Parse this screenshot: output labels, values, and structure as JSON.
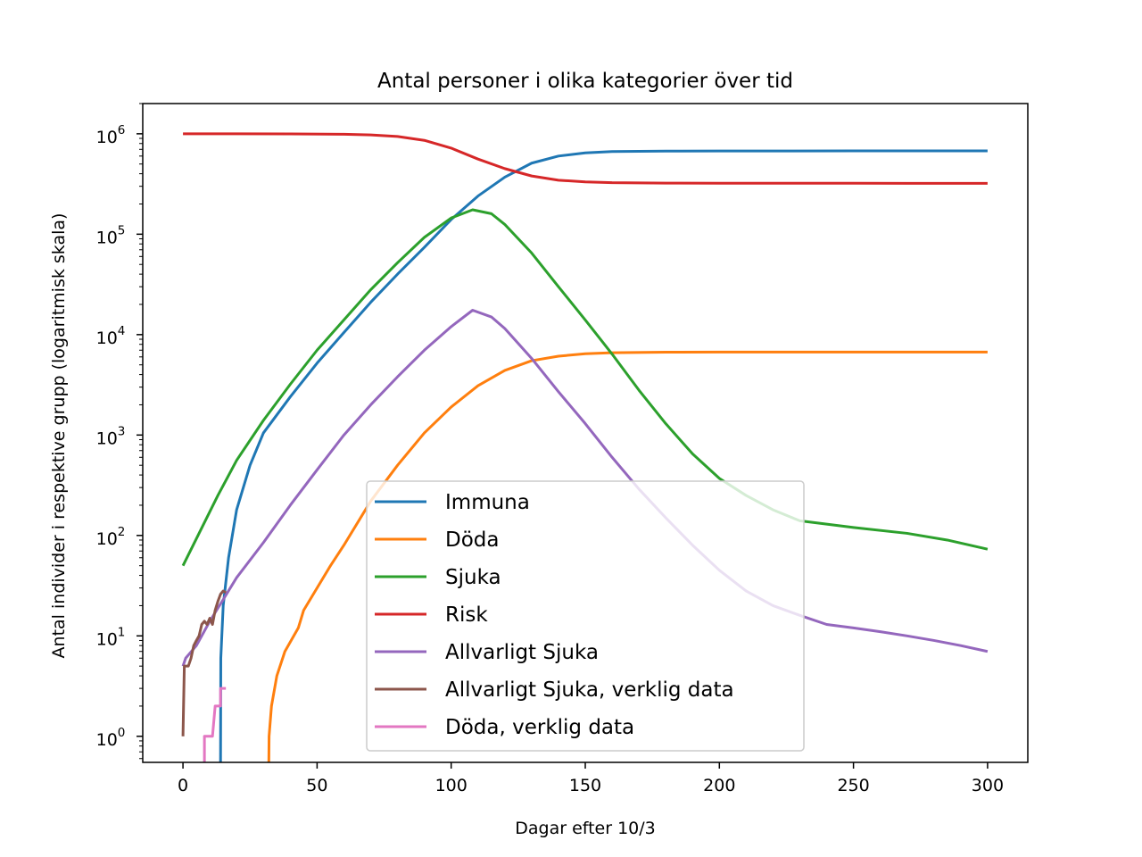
{
  "chart_data": {
    "type": "line",
    "title": "Antal personer i olika kategorier över tid",
    "xlabel": "Dagar efter 10/3",
    "ylabel": "Antal individer i respektive grupp (logaritmisk skala)",
    "xlim": [
      -15,
      315
    ],
    "ylim": [
      0.55,
      2000000
    ],
    "yscale": "log",
    "grid": false,
    "legend_position": "lower center",
    "x_ticks": [
      0,
      50,
      100,
      150,
      200,
      250,
      300
    ],
    "y_ticks": [
      {
        "value": 1,
        "base": "10",
        "exp": "0"
      },
      {
        "value": 10,
        "base": "10",
        "exp": "1"
      },
      {
        "value": 100,
        "base": "10",
        "exp": "2"
      },
      {
        "value": 1000,
        "base": "10",
        "exp": "3"
      },
      {
        "value": 10000,
        "base": "10",
        "exp": "4"
      },
      {
        "value": 100000,
        "base": "10",
        "exp": "5"
      },
      {
        "value": 1000000,
        "base": "10",
        "exp": "6"
      }
    ],
    "series": [
      {
        "name": "Immuna",
        "color": "#1f77b4",
        "points": [
          [
            14,
            0.5
          ],
          [
            14.1,
            6
          ],
          [
            15,
            20
          ],
          [
            17,
            60
          ],
          [
            20,
            180
          ],
          [
            25,
            500
          ],
          [
            30,
            1050
          ],
          [
            40,
            2400
          ],
          [
            50,
            5200
          ],
          [
            60,
            10500
          ],
          [
            70,
            21000
          ],
          [
            80,
            40000
          ],
          [
            90,
            74000
          ],
          [
            100,
            140000
          ],
          [
            110,
            240000
          ],
          [
            120,
            370000
          ],
          [
            130,
            510000
          ],
          [
            140,
            600000
          ],
          [
            150,
            645000
          ],
          [
            160,
            665000
          ],
          [
            180,
            672000
          ],
          [
            200,
            674000
          ],
          [
            250,
            675000
          ],
          [
            300,
            675000
          ]
        ]
      },
      {
        "name": "Döda",
        "color": "#ff7f0e",
        "points": [
          [
            32,
            0.5
          ],
          [
            32.1,
            1
          ],
          [
            33,
            2
          ],
          [
            35,
            4
          ],
          [
            38,
            7
          ],
          [
            43,
            12
          ],
          [
            45,
            18
          ],
          [
            50,
            30
          ],
          [
            55,
            50
          ],
          [
            60,
            80
          ],
          [
            70,
            220
          ],
          [
            80,
            500
          ],
          [
            90,
            1050
          ],
          [
            100,
            1900
          ],
          [
            110,
            3100
          ],
          [
            120,
            4400
          ],
          [
            130,
            5500
          ],
          [
            140,
            6100
          ],
          [
            150,
            6450
          ],
          [
            160,
            6600
          ],
          [
            180,
            6680
          ],
          [
            200,
            6700
          ],
          [
            300,
            6700
          ]
        ]
      },
      {
        "name": "Sjuka",
        "color": "#2ca02c",
        "points": [
          [
            0,
            50
          ],
          [
            13,
            250
          ],
          [
            20,
            560
          ],
          [
            30,
            1400
          ],
          [
            40,
            3200
          ],
          [
            50,
            7000
          ],
          [
            60,
            14000
          ],
          [
            70,
            28000
          ],
          [
            80,
            52000
          ],
          [
            90,
            93000
          ],
          [
            100,
            145000
          ],
          [
            108,
            175000
          ],
          [
            115,
            160000
          ],
          [
            120,
            125000
          ],
          [
            130,
            65000
          ],
          [
            140,
            30000
          ],
          [
            150,
            14000
          ],
          [
            160,
            6400
          ],
          [
            170,
            2800
          ],
          [
            180,
            1300
          ],
          [
            190,
            650
          ],
          [
            200,
            370
          ],
          [
            210,
            250
          ],
          [
            220,
            180
          ],
          [
            230,
            140
          ],
          [
            250,
            120
          ],
          [
            270,
            105
          ],
          [
            285,
            90
          ],
          [
            300,
            73
          ]
        ]
      },
      {
        "name": "Risk",
        "color": "#d62728",
        "points": [
          [
            0,
            1000000
          ],
          [
            20,
            999000
          ],
          [
            40,
            997000
          ],
          [
            60,
            990000
          ],
          [
            70,
            975000
          ],
          [
            80,
            940000
          ],
          [
            90,
            860000
          ],
          [
            100,
            720000
          ],
          [
            110,
            560000
          ],
          [
            120,
            450000
          ],
          [
            130,
            380000
          ],
          [
            140,
            345000
          ],
          [
            150,
            332000
          ],
          [
            160,
            326000
          ],
          [
            180,
            323000
          ],
          [
            200,
            322000
          ],
          [
            250,
            321500
          ],
          [
            300,
            321000
          ]
        ]
      },
      {
        "name": "Allvarligt Sjuka",
        "color": "#9467bd",
        "points": [
          [
            0,
            5
          ],
          [
            1,
            6
          ],
          [
            5,
            8
          ],
          [
            10,
            14
          ],
          [
            15,
            23
          ],
          [
            20,
            38
          ],
          [
            30,
            85
          ],
          [
            40,
            200
          ],
          [
            50,
            450
          ],
          [
            60,
            1000
          ],
          [
            70,
            2000
          ],
          [
            80,
            3800
          ],
          [
            90,
            7000
          ],
          [
            100,
            12000
          ],
          [
            108,
            17500
          ],
          [
            115,
            15000
          ],
          [
            120,
            11500
          ],
          [
            130,
            5800
          ],
          [
            140,
            2700
          ],
          [
            150,
            1300
          ],
          [
            160,
            600
          ],
          [
            170,
            290
          ],
          [
            180,
            150
          ],
          [
            190,
            80
          ],
          [
            200,
            45
          ],
          [
            210,
            28
          ],
          [
            220,
            20
          ],
          [
            230,
            16
          ],
          [
            240,
            13
          ],
          [
            250,
            12
          ],
          [
            260,
            11
          ],
          [
            270,
            10
          ],
          [
            280,
            9
          ],
          [
            290,
            8
          ],
          [
            300,
            7
          ]
        ]
      },
      {
        "name": "Allvarligt Sjuka, verklig data",
        "color": "#8c564b",
        "points": [
          [
            0,
            1
          ],
          [
            0.5,
            5
          ],
          [
            2,
            5
          ],
          [
            3,
            6
          ],
          [
            4,
            8
          ],
          [
            5,
            9
          ],
          [
            6,
            10
          ],
          [
            7,
            13
          ],
          [
            8,
            14
          ],
          [
            9,
            13
          ],
          [
            10,
            15
          ],
          [
            11,
            13
          ],
          [
            12,
            18
          ],
          [
            13,
            22
          ],
          [
            14,
            26
          ],
          [
            15,
            28
          ],
          [
            16,
            27
          ]
        ]
      },
      {
        "name": "Döda, verklig data",
        "color": "#e377c2",
        "points": [
          [
            8,
            0.5
          ],
          [
            8,
            1
          ],
          [
            10,
            1
          ],
          [
            11,
            1
          ],
          [
            12,
            2
          ],
          [
            14,
            2
          ],
          [
            14,
            3
          ],
          [
            16,
            3
          ]
        ]
      }
    ]
  }
}
